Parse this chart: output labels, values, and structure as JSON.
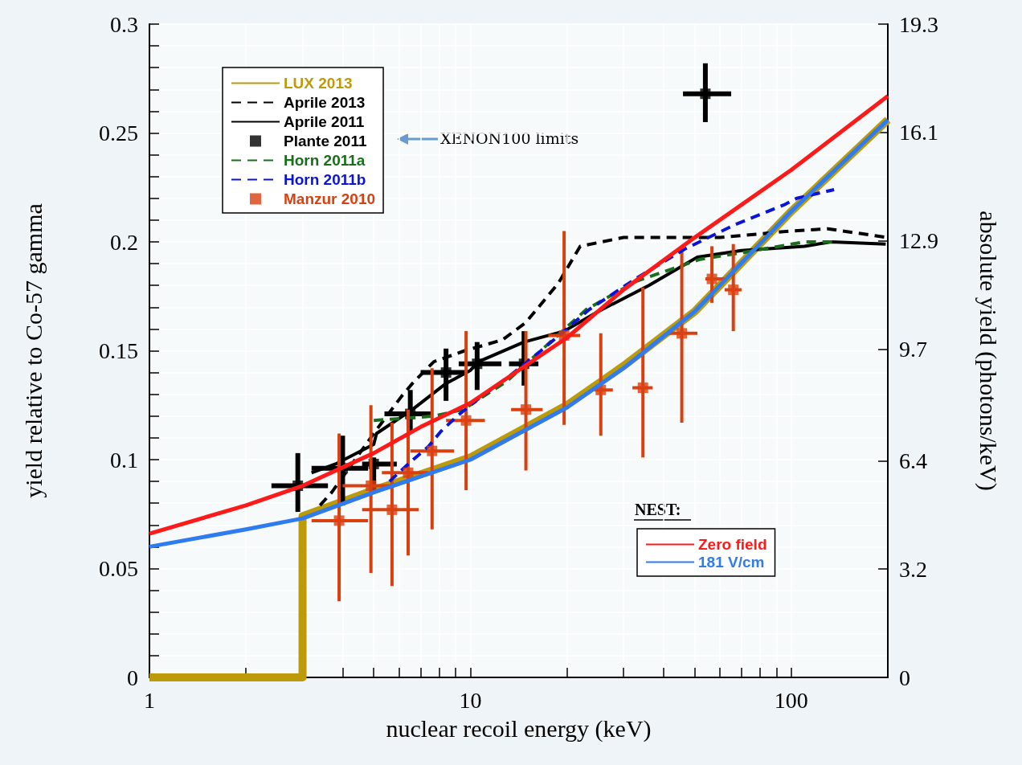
{
  "chart_data": {
    "type": "line",
    "xlabel": "nuclear recoil energy (keV)",
    "ylabel": "yield relative to Co-57 gamma",
    "y2label": "absolute yield (photons/keV)",
    "log": "x",
    "xlim": [
      1,
      200
    ],
    "xticks": [
      1,
      {
        "value": 2,
        "label": null
      },
      {
        "value": 3,
        "label": null
      },
      {
        "value": 4,
        "label": null
      },
      {
        "value": 5,
        "label": null
      },
      {
        "value": 6,
        "label": null
      },
      {
        "value": 7,
        "label": null
      },
      {
        "value": 8,
        "label": null
      },
      {
        "value": 9,
        "label": null
      },
      10,
      {
        "value": 20,
        "label": null
      },
      {
        "value": 30,
        "label": null
      },
      {
        "value": 40,
        "label": null
      },
      {
        "value": 50,
        "label": null
      },
      {
        "value": 60,
        "label": null
      },
      {
        "value": 70,
        "label": null
      },
      {
        "value": 80,
        "label": null
      },
      {
        "value": 90,
        "label": null
      },
      100
    ],
    "ylim": [
      0,
      0.3
    ],
    "yticks": [
      0,
      {
        "value": 0.01,
        "label": null
      },
      {
        "value": 0.02,
        "label": null
      },
      {
        "value": 0.03,
        "label": null
      },
      {
        "value": 0.04,
        "label": null
      },
      0.05,
      {
        "value": 0.06,
        "label": null
      },
      {
        "value": 0.07,
        "label": null
      },
      {
        "value": 0.08,
        "label": null
      },
      {
        "value": 0.09,
        "label": null
      },
      0.1,
      {
        "value": 0.11,
        "label": null
      },
      {
        "value": 0.12,
        "label": null
      },
      {
        "value": 0.13,
        "label": null
      },
      {
        "value": 0.14,
        "label": null
      },
      0.15,
      {
        "value": 0.16,
        "label": null
      },
      {
        "value": 0.17,
        "label": null
      },
      {
        "value": 0.18,
        "label": null
      },
      {
        "value": 0.19,
        "label": null
      },
      0.2,
      {
        "value": 0.21,
        "label": null
      },
      {
        "value": 0.22,
        "label": null
      },
      {
        "value": 0.23,
        "label": null
      },
      {
        "value": 0.24,
        "label": null
      },
      0.25,
      {
        "value": 0.26,
        "label": null
      },
      {
        "value": 0.27,
        "label": null
      },
      {
        "value": 0.28,
        "label": null
      },
      {
        "value": 0.29,
        "label": null
      },
      0.3
    ],
    "y2lim": [
      0,
      19.3
    ],
    "y2ticks": [
      0,
      3.2,
      6.4,
      9.7,
      12.9,
      16.1,
      19.3
    ],
    "grid": true,
    "legend": "top left",
    "legend_title": "NEST:",
    "annotations": [
      "XENON100 limits"
    ],
    "series": [
      {
        "name": "LUX 2013",
        "color": "#bd9a0a",
        "line_style": "solid",
        "marker": "none",
        "x": [
          1,
          3,
          3,
          5,
          10,
          20,
          30,
          50,
          100,
          200
        ],
        "values": [
          0,
          0,
          0.074,
          0.086,
          0.101,
          0.125,
          0.143,
          0.168,
          0.214,
          0.256
        ]
      },
      {
        "name": "Aprile 2013",
        "color": "#000000",
        "line_style": "dashed",
        "marker": "none",
        "x": [
          3.4,
          3.7,
          5,
          6.1,
          6.6,
          7.7,
          9.6,
          12.6,
          14.9,
          18.8,
          22,
          30,
          60,
          100,
          130,
          200
        ],
        "values": [
          0.079,
          0.085,
          0.112,
          0.129,
          0.135,
          0.145,
          0.15,
          0.155,
          0.163,
          0.181,
          0.198,
          0.202,
          0.202,
          0.205,
          0.206,
          0.202
        ]
      },
      {
        "name": "Aprile 2011",
        "color": "#000000",
        "line_style": "solid",
        "marker": "none",
        "x": [
          3.2,
          3.8,
          5,
          5.1,
          6.6,
          8.4,
          10,
          10.6,
          14.7,
          19.6,
          25,
          36,
          51,
          70,
          110,
          133,
          197
        ],
        "values": [
          0.094,
          0.098,
          0.107,
          0.112,
          0.123,
          0.135,
          0.141,
          0.145,
          0.154,
          0.159,
          0.168,
          0.18,
          0.193,
          0.196,
          0.198,
          0.2,
          0.199
        ]
      },
      {
        "type": "scatter",
        "name": "Plante 2011",
        "color": "#000000",
        "marker": "square",
        "x": [
          2.9,
          4,
          5,
          6.5,
          8.4,
          10.5,
          14.7,
          54
        ],
        "values": [
          0.088,
          0.096,
          0.098,
          0.121,
          0.14,
          0.144,
          0.144,
          0.268
        ],
        "errors": [
          [
            0.076,
            0.103
          ],
          [
            0.079,
            0.111
          ],
          [
            0.086,
            0.101
          ],
          [
            0.112,
            0.132
          ],
          [
            0.127,
            0.151
          ],
          [
            0.132,
            0.154
          ],
          [
            0.134,
            0.159
          ],
          [
            0.255,
            0.282
          ]
        ],
        "xerrors": [
          [
            2.4,
            3.6
          ],
          [
            3.2,
            4.8
          ],
          [
            4.6,
            5.9
          ],
          [
            5.4,
            7.6
          ],
          [
            7,
            9.7
          ],
          [
            9.2,
            12.5
          ],
          [
            13.2,
            16.3
          ],
          [
            46,
            65
          ]
        ]
      },
      {
        "name": "Horn 2011a",
        "color": "#1a6e1a",
        "line_style": "dashed",
        "marker": "none",
        "x": [
          5,
          7.7,
          9.5,
          13,
          23,
          33,
          52,
          70,
          110,
          137
        ],
        "values": [
          0.118,
          0.12,
          0.123,
          0.136,
          0.169,
          0.182,
          0.192,
          0.195,
          0.2,
          0.2
        ]
      },
      {
        "name": "Horn 2011b",
        "color": "#0a14d8",
        "line_style": "dashed",
        "marker": "none",
        "x": [
          5.6,
          6.4,
          7.4,
          8.1,
          9.1,
          10.4,
          13.4,
          16.6,
          23.5,
          33.5,
          47,
          67,
          95,
          104,
          136
        ],
        "values": [
          0.09,
          0.098,
          0.106,
          0.113,
          0.12,
          0.127,
          0.139,
          0.15,
          0.169,
          0.184,
          0.197,
          0.208,
          0.217,
          0.22,
          0.224
        ]
      },
      {
        "type": "scatter",
        "name": "Manzur 2010",
        "color": "#d94010",
        "marker": "square",
        "x": [
          3.9,
          4.9,
          5.7,
          6.4,
          7.6,
          9.7,
          14.9,
          19.6,
          25.5,
          34.5,
          45.6,
          56.6,
          66
        ],
        "values": [
          0.072,
          0.088,
          0.077,
          0.094,
          0.104,
          0.118,
          0.123,
          0.157,
          0.132,
          0.133,
          0.158,
          0.183,
          0.178
        ],
        "errors": [
          [
            0.035,
            0.112
          ],
          [
            0.048,
            0.125
          ],
          [
            0.042,
            0.117
          ],
          [
            0.056,
            0.123
          ],
          [
            0.068,
            0.142
          ],
          [
            0.086,
            0.159
          ],
          [
            0.095,
            0.159
          ],
          [
            0.116,
            0.205
          ],
          [
            0.111,
            0.158
          ],
          [
            0.101,
            0.179
          ],
          [
            0.117,
            0.198
          ],
          [
            0.172,
            0.198
          ],
          [
            0.159,
            0.199
          ]
        ],
        "xerrors": [
          [
            3.2,
            4.8
          ],
          [
            4,
            5.8
          ],
          [
            4.6,
            6.9
          ],
          [
            5.3,
            7.4
          ],
          [
            6.5,
            8.9
          ],
          [
            8.4,
            11.1
          ],
          [
            13.4,
            16.8
          ],
          [
            17.5,
            22
          ],
          [
            24.4,
            27.8
          ],
          [
            32,
            37
          ],
          [
            41.5,
            51
          ],
          [
            54,
            62
          ],
          [
            62,
            70
          ]
        ]
      },
      {
        "name": "Zero field",
        "color": "#ff1a1a",
        "line_style": "solid",
        "marker": "none",
        "x": [
          1,
          2,
          3,
          5,
          7,
          10,
          20,
          30,
          50,
          100,
          200
        ],
        "values": [
          0.066,
          0.079,
          0.088,
          0.103,
          0.115,
          0.126,
          0.156,
          0.178,
          0.202,
          0.233,
          0.267
        ]
      },
      {
        "name": "181 V/cm",
        "color": "#2f7bf0",
        "line_style": "solid",
        "marker": "none",
        "x": [
          1,
          2,
          3,
          5,
          10,
          20,
          30,
          50,
          100,
          200
        ],
        "values": [
          0.06,
          0.068,
          0.073,
          0.085,
          0.1,
          0.124,
          0.142,
          0.168,
          0.214,
          0.256
        ]
      }
    ]
  }
}
